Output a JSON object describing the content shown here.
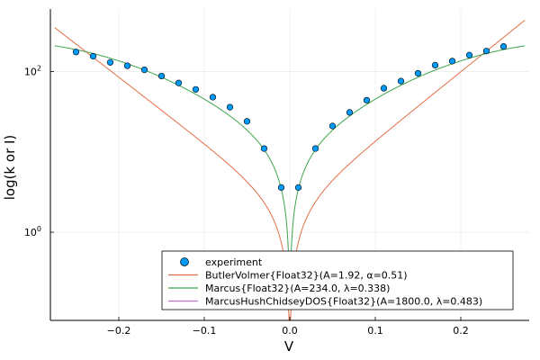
{
  "chart_data": {
    "type": "scatter",
    "title": "",
    "xlabel": "V",
    "ylabel": "log(k or I)",
    "xlim": [
      -0.28,
      0.28
    ],
    "ylim": [
      0.08,
      600
    ],
    "yscale": "log",
    "grid": true,
    "legend_position": "bottom-right",
    "x_ticks": [
      {
        "value": -0.2,
        "label": "−0.2"
      },
      {
        "value": -0.1,
        "label": "−0.1"
      },
      {
        "value": 0.0,
        "label": "0.0"
      },
      {
        "value": 0.1,
        "label": "0.1"
      },
      {
        "value": 0.2,
        "label": "0.2"
      }
    ],
    "y_ticks": [
      {
        "value": 1,
        "label_base": "10",
        "label_exp": "0"
      },
      {
        "value": 100,
        "label_base": "10",
        "label_exp": "2"
      }
    ],
    "experiment": {
      "name": "experiment",
      "color": "#009AFA",
      "x": [
        -0.25,
        -0.23,
        -0.21,
        -0.19,
        -0.17,
        -0.15,
        -0.13,
        -0.11,
        -0.09,
        -0.07,
        -0.05,
        -0.03,
        -0.01,
        0.01,
        0.03,
        0.05,
        0.07,
        0.09,
        0.11,
        0.13,
        0.15,
        0.17,
        0.19,
        0.21,
        0.23,
        0.25
      ],
      "y": [
        175,
        155,
        130,
        118,
        105,
        88,
        72,
        60,
        48,
        36,
        24,
        11,
        3.6,
        3.6,
        11,
        21,
        31,
        44,
        62,
        76,
        95,
        120,
        135,
        160,
        180,
        205
      ]
    },
    "series": [
      {
        "name": "ButlerVolmer{Float32}(A=1.92, α=0.51)",
        "model": "butlervolmer",
        "A": 1.92,
        "alpha": 0.51,
        "color": "#E26F46"
      },
      {
        "name": "Marcus{Float32}(A=234.0, λ=0.338)",
        "model": "marcus",
        "A": 234.0,
        "lambda": 0.338,
        "color": "#3EA44E"
      },
      {
        "name": "MarcusHushChidseyDOS{Float32}(A=1800.0, λ=0.483)",
        "model": "mhc",
        "A": 1800.0,
        "lambda": 0.483,
        "color": "#C271D2"
      }
    ]
  }
}
